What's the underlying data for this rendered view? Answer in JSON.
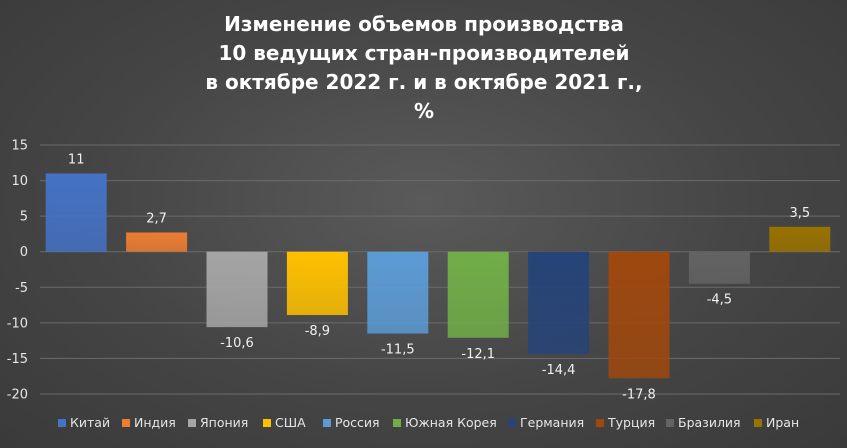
{
  "chart_data": {
    "type": "bar",
    "title_lines": [
      "Изменение объемов производства",
      "10 ведущих стран-производителей",
      "в октябре 2022 г. и в октябре 2021 г.,",
      "%"
    ],
    "categories": [
      "Китай",
      "Индия",
      "Япония",
      "США",
      "Россия",
      "Южная Корея",
      "Германия",
      "Турция",
      "Бразилия",
      "Иран"
    ],
    "values": [
      11,
      2.7,
      -10.6,
      -8.9,
      -11.5,
      -12.1,
      -14.4,
      -17.8,
      -4.5,
      3.5
    ],
    "value_labels": [
      "11",
      "2,7",
      "-10,6",
      "-8,9",
      "-11,5",
      "-12,1",
      "-14,4",
      "-17,8",
      "-4,5",
      "3,5"
    ],
    "colors": [
      "#4472c4",
      "#ed7d31",
      "#a5a5a5",
      "#ffc000",
      "#5b9bd5",
      "#70ad47",
      "#264478",
      "#9e480e",
      "#636363",
      "#997300"
    ],
    "ylim": [
      -20,
      15
    ],
    "yticks": [
      "15",
      "10",
      "5",
      "0",
      "-5",
      "-10",
      "-15",
      "-20"
    ],
    "grid": true,
    "legend_position": "bottom"
  }
}
